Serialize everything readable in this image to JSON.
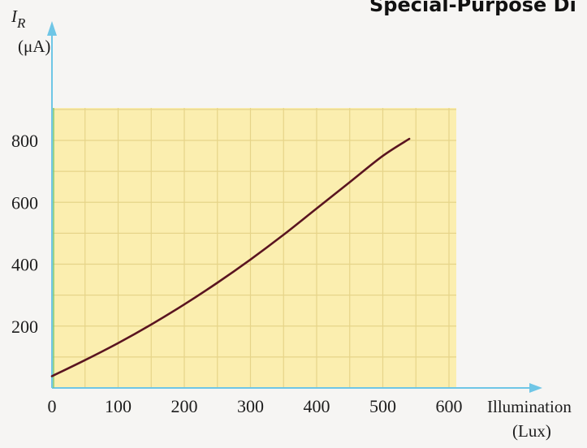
{
  "page": {
    "header_text": "Special-Purpose Di"
  },
  "chart_data": {
    "type": "line",
    "ylabel_symbol": "I",
    "ylabel_subscript": "R",
    "ylabel_unit": "(μA)",
    "xlabel": "Illumination",
    "xlabel_unit": "(Lux)",
    "xlim": [
      0,
      600
    ],
    "ylim": [
      0,
      800
    ],
    "x_ticks": [
      0,
      100,
      200,
      300,
      400,
      500,
      600
    ],
    "x_tick_labels": [
      "0",
      "100",
      "200",
      "300",
      "400",
      "500",
      "600"
    ],
    "y_ticks": [
      200,
      400,
      600,
      800
    ],
    "y_tick_labels": [
      "200",
      "400",
      "600",
      "800"
    ],
    "grid": true,
    "colors": {
      "grid_fill": "#fbeeaf",
      "grid_line": "#e6d489",
      "axis": "#6fc6e6",
      "curve": "#5a1420",
      "zero_axis": "#7ec87a"
    },
    "series": [
      {
        "x": [
          0,
          50,
          100,
          150,
          200,
          250,
          300,
          350,
          400,
          450,
          500,
          540
        ],
        "values": [
          38,
          90,
          145,
          205,
          270,
          340,
          415,
          495,
          580,
          665,
          750,
          805
        ]
      }
    ]
  }
}
